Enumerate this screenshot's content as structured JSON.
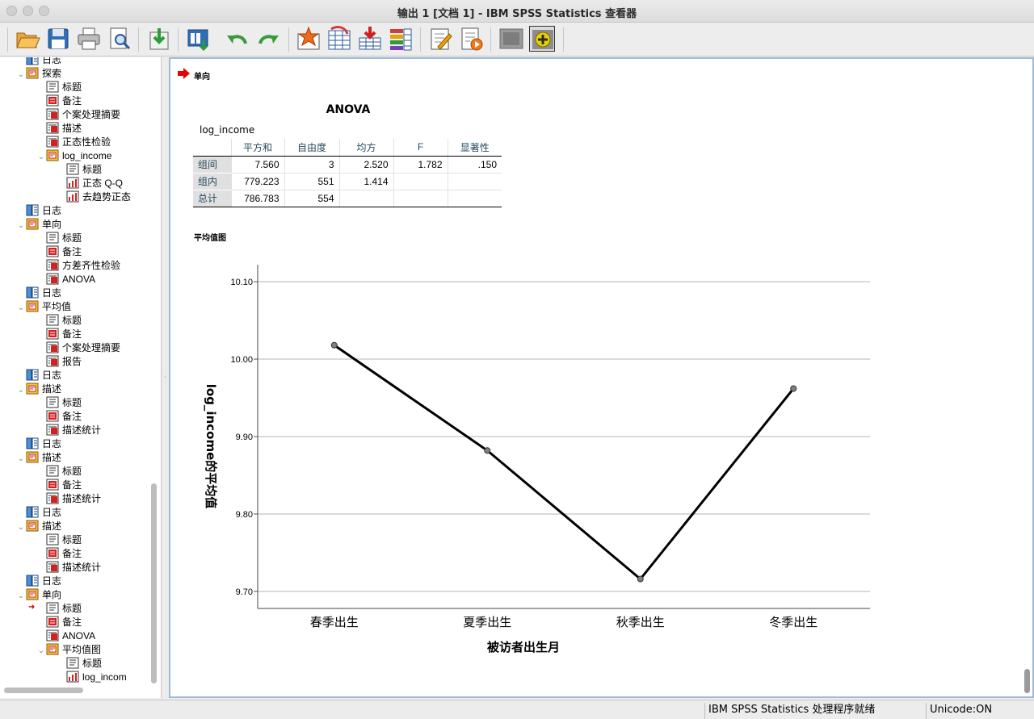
{
  "window": {
    "title": "输出 1 [文档 1] - IBM SPSS Statistics 查看器"
  },
  "toolbar": {
    "buttons": [
      {
        "name": "open-icon"
      },
      {
        "name": "save-icon"
      },
      {
        "name": "print-icon"
      },
      {
        "name": "print-preview-icon"
      },
      {
        "name": "export-icon"
      },
      {
        "name": "recall-dialog-icon"
      },
      {
        "name": "undo-icon"
      },
      {
        "name": "redo-icon"
      },
      {
        "name": "goto-case-icon"
      },
      {
        "name": "goto-variable-icon"
      },
      {
        "name": "insert-cases-icon"
      },
      {
        "name": "variables-icon"
      },
      {
        "name": "edit-icon"
      },
      {
        "name": "script-icon"
      },
      {
        "name": "hide-icon"
      },
      {
        "name": "show-icon"
      }
    ]
  },
  "outline": {
    "items": [
      {
        "label": "日志",
        "level": 1,
        "type": "log"
      },
      {
        "label": "探索",
        "level": 1,
        "type": "folder",
        "expanded": true
      },
      {
        "label": "标题",
        "level": 2,
        "type": "title"
      },
      {
        "label": "备注",
        "level": 2,
        "type": "notes"
      },
      {
        "label": "个案处理摘要",
        "level": 2,
        "type": "table"
      },
      {
        "label": "描述",
        "level": 2,
        "type": "table"
      },
      {
        "label": "正态性检验",
        "level": 2,
        "type": "table"
      },
      {
        "label": "log_income",
        "level": 2,
        "type": "folder",
        "expanded": true
      },
      {
        "label": "标题",
        "level": 3,
        "type": "title"
      },
      {
        "label": "正态 Q-Q",
        "level": 3,
        "type": "chart"
      },
      {
        "label": "去趋势正态",
        "level": 3,
        "type": "chart"
      },
      {
        "label": "日志",
        "level": 1,
        "type": "log"
      },
      {
        "label": "单向",
        "level": 1,
        "type": "folder",
        "expanded": true
      },
      {
        "label": "标题",
        "level": 2,
        "type": "title"
      },
      {
        "label": "备注",
        "level": 2,
        "type": "notes"
      },
      {
        "label": "方差齐性检验",
        "level": 2,
        "type": "table"
      },
      {
        "label": "ANOVA",
        "level": 2,
        "type": "table"
      },
      {
        "label": "日志",
        "level": 1,
        "type": "log"
      },
      {
        "label": "平均值",
        "level": 1,
        "type": "folder",
        "expanded": true
      },
      {
        "label": "标题",
        "level": 2,
        "type": "title"
      },
      {
        "label": "备注",
        "level": 2,
        "type": "notes"
      },
      {
        "label": "个案处理摘要",
        "level": 2,
        "type": "table"
      },
      {
        "label": "报告",
        "level": 2,
        "type": "table"
      },
      {
        "label": "日志",
        "level": 1,
        "type": "log"
      },
      {
        "label": "描述",
        "level": 1,
        "type": "folder",
        "expanded": true
      },
      {
        "label": "标题",
        "level": 2,
        "type": "title"
      },
      {
        "label": "备注",
        "level": 2,
        "type": "notes"
      },
      {
        "label": "描述统计",
        "level": 2,
        "type": "table"
      },
      {
        "label": "日志",
        "level": 1,
        "type": "log"
      },
      {
        "label": "描述",
        "level": 1,
        "type": "folder",
        "expanded": true
      },
      {
        "label": "标题",
        "level": 2,
        "type": "title"
      },
      {
        "label": "备注",
        "level": 2,
        "type": "notes"
      },
      {
        "label": "描述统计",
        "level": 2,
        "type": "table"
      },
      {
        "label": "日志",
        "level": 1,
        "type": "log"
      },
      {
        "label": "描述",
        "level": 1,
        "type": "folder",
        "expanded": true
      },
      {
        "label": "标题",
        "level": 2,
        "type": "title"
      },
      {
        "label": "备注",
        "level": 2,
        "type": "notes"
      },
      {
        "label": "描述统计",
        "level": 2,
        "type": "table"
      },
      {
        "label": "日志",
        "level": 1,
        "type": "log"
      },
      {
        "label": "单向",
        "level": 1,
        "type": "folder",
        "expanded": true
      },
      {
        "label": "标题",
        "level": 2,
        "type": "title",
        "current": true
      },
      {
        "label": "备注",
        "level": 2,
        "type": "notes"
      },
      {
        "label": "ANOVA",
        "level": 2,
        "type": "table"
      },
      {
        "label": "平均值图",
        "level": 2,
        "type": "folder",
        "expanded": true
      },
      {
        "label": "标题",
        "level": 3,
        "type": "title"
      },
      {
        "label": "log_incom",
        "level": 3,
        "type": "chart"
      }
    ]
  },
  "content": {
    "section_title": "单向",
    "anova": {
      "title": "ANOVA",
      "dependent": "log_income",
      "headers": [
        "平方和",
        "自由度",
        "均方",
        "F",
        "显著性"
      ],
      "rows": [
        {
          "label": "组间",
          "cells": [
            "7.560",
            "3",
            "2.520",
            "1.782",
            ".150"
          ]
        },
        {
          "label": "组内",
          "cells": [
            "779.223",
            "551",
            "1.414",
            "",
            ""
          ]
        },
        {
          "label": "总计",
          "cells": [
            "786.783",
            "554",
            "",
            "",
            ""
          ]
        }
      ]
    },
    "chart_section_title": "平均值图"
  },
  "chart_data": {
    "type": "line",
    "title": "",
    "categories": [
      "春季出生",
      "夏季出生",
      "秋季出生",
      "冬季出生"
    ],
    "values": [
      10.018,
      9.882,
      9.716,
      9.962
    ],
    "xlabel": "被访者出生月",
    "ylabel": "log_income的平均值",
    "ylim": [
      9.678,
      10.122
    ],
    "yticks": [
      "9.70",
      "9.80",
      "9.90",
      "10.00",
      "10.10"
    ],
    "ytick_values": [
      9.7,
      9.8,
      9.9,
      10.0,
      10.1
    ],
    "grid": true,
    "line_color": "#000000",
    "marker_color": "#7f7f7f"
  },
  "status": {
    "processor": "IBM SPSS Statistics 处理程序就绪",
    "unicode": "Unicode:ON"
  }
}
